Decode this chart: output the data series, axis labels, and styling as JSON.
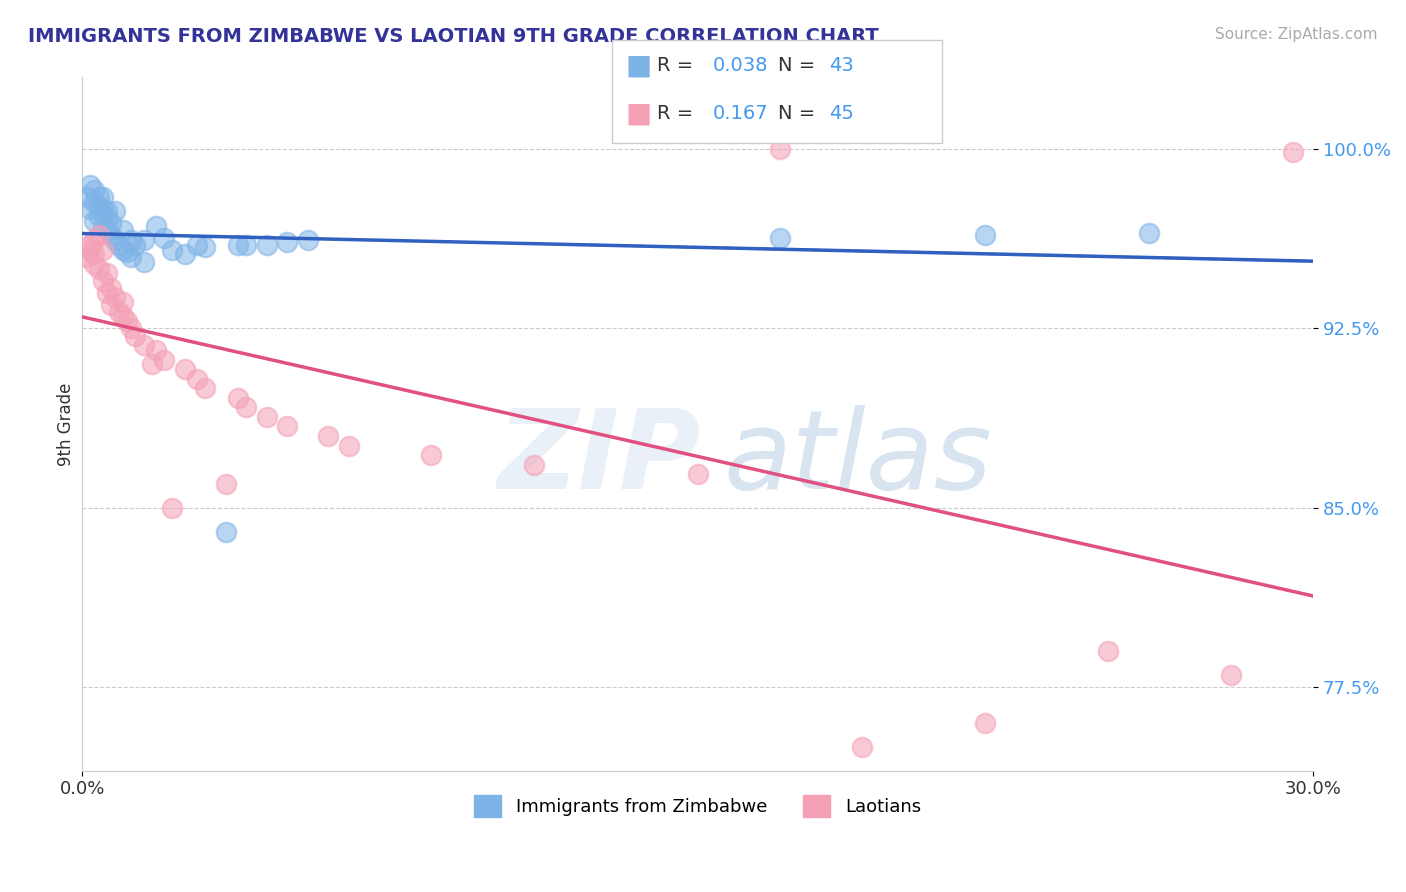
{
  "title": "IMMIGRANTS FROM ZIMBABWE VS LAOTIAN 9TH GRADE CORRELATION CHART",
  "source": "Source: ZipAtlas.com",
  "ylabel": "9th Grade",
  "xlim": [
    0.0,
    0.3
  ],
  "ylim": [
    0.74,
    1.03
  ],
  "xtick_labels": [
    "0.0%",
    "30.0%"
  ],
  "ytick_positions": [
    0.775,
    0.85,
    0.925,
    1.0
  ],
  "ytick_labels": [
    "77.5%",
    "85.0%",
    "92.5%",
    "100.0%"
  ],
  "blue_color": "#7EB3E8",
  "pink_color": "#F4A0B5",
  "blue_line_color": "#3060C0",
  "pink_line_color": "#E05080",
  "blue_scatter_x": [
    0.001,
    0.002,
    0.002,
    0.003,
    0.003,
    0.003,
    0.004,
    0.004,
    0.004,
    0.005,
    0.005,
    0.005,
    0.006,
    0.006,
    0.006,
    0.007,
    0.007,
    0.008,
    0.008,
    0.009,
    0.01,
    0.01,
    0.011,
    0.012,
    0.012,
    0.013,
    0.015,
    0.015,
    0.018,
    0.02,
    0.022,
    0.025,
    0.028,
    0.03,
    0.035,
    0.038,
    0.04,
    0.045,
    0.05,
    0.055,
    0.17,
    0.22,
    0.26
  ],
  "blue_scatter_y": [
    0.98,
    0.975,
    0.985,
    0.97,
    0.978,
    0.983,
    0.972,
    0.98,
    0.976,
    0.968,
    0.975,
    0.98,
    0.971,
    0.966,
    0.974,
    0.964,
    0.969,
    0.962,
    0.974,
    0.96,
    0.958,
    0.966,
    0.957,
    0.955,
    0.962,
    0.96,
    0.953,
    0.962,
    0.968,
    0.963,
    0.958,
    0.956,
    0.96,
    0.959,
    0.84,
    0.96,
    0.96,
    0.96,
    0.961,
    0.962,
    0.963,
    0.964,
    0.965
  ],
  "pink_scatter_x": [
    0.001,
    0.002,
    0.002,
    0.003,
    0.003,
    0.003,
    0.004,
    0.004,
    0.005,
    0.005,
    0.006,
    0.006,
    0.007,
    0.007,
    0.008,
    0.009,
    0.01,
    0.01,
    0.011,
    0.012,
    0.013,
    0.015,
    0.017,
    0.018,
    0.02,
    0.022,
    0.025,
    0.028,
    0.03,
    0.035,
    0.038,
    0.04,
    0.045,
    0.05,
    0.06,
    0.065,
    0.085,
    0.11,
    0.15,
    0.17,
    0.19,
    0.22,
    0.25,
    0.28,
    0.295
  ],
  "pink_scatter_y": [
    0.955,
    0.958,
    0.96,
    0.952,
    0.962,
    0.956,
    0.964,
    0.95,
    0.958,
    0.945,
    0.948,
    0.94,
    0.942,
    0.935,
    0.938,
    0.932,
    0.93,
    0.936,
    0.928,
    0.925,
    0.922,
    0.918,
    0.91,
    0.916,
    0.912,
    0.85,
    0.908,
    0.904,
    0.9,
    0.86,
    0.896,
    0.892,
    0.888,
    0.884,
    0.88,
    0.876,
    0.872,
    0.868,
    0.864,
    1.0,
    0.75,
    0.76,
    0.79,
    0.78,
    0.999
  ]
}
